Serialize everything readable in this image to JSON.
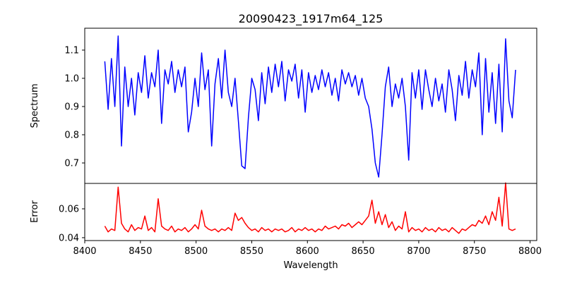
{
  "chart_data": [
    {
      "type": "line",
      "title": "20090423_1917m64_125",
      "xlabel": "",
      "ylabel": "Spectrum",
      "color": "#0000ff",
      "xlim": [
        8400,
        8806
      ],
      "ylim": [
        0.6275,
        1.1775
      ],
      "yticks": [
        0.7,
        0.8,
        0.9,
        1.0,
        1.1
      ],
      "ytick_labels": [
        "0.7",
        "0.8",
        "0.9",
        "1.0",
        "1.1"
      ],
      "x_start": 8418,
      "x_step": 3,
      "values": [
        1.06,
        0.89,
        1.07,
        0.9,
        1.15,
        0.76,
        1.04,
        0.9,
        1.0,
        0.87,
        1.02,
        0.95,
        1.08,
        0.93,
        1.02,
        0.97,
        1.1,
        0.84,
        1.03,
        0.98,
        1.06,
        0.95,
        1.03,
        0.97,
        1.04,
        0.81,
        0.88,
        1.0,
        0.9,
        1.09,
        0.96,
        1.03,
        0.76,
        0.98,
        1.07,
        0.93,
        1.1,
        0.95,
        0.9,
        1.0,
        0.85,
        0.69,
        0.68,
        0.86,
        1.0,
        0.96,
        0.85,
        1.02,
        0.91,
        1.04,
        0.95,
        1.05,
        0.97,
        1.06,
        0.92,
        1.03,
        0.99,
        1.05,
        0.93,
        1.03,
        0.88,
        1.02,
        0.95,
        1.01,
        0.96,
        1.03,
        0.97,
        1.02,
        0.94,
        1.0,
        0.92,
        1.03,
        0.98,
        1.02,
        0.97,
        1.01,
        0.94,
        1.0,
        0.93,
        0.9,
        0.82,
        0.7,
        0.65,
        0.8,
        0.97,
        1.04,
        0.9,
        0.98,
        0.93,
        1.0,
        0.9,
        0.71,
        1.02,
        0.93,
        1.03,
        0.89,
        1.03,
        0.96,
        0.9,
        1.0,
        0.92,
        0.98,
        0.88,
        1.03,
        0.96,
        0.85,
        1.01,
        0.94,
        1.06,
        0.93,
        1.03,
        0.97,
        1.09,
        0.8,
        1.07,
        0.88,
        1.02,
        0.84,
        1.05,
        0.81,
        1.14,
        0.92,
        0.86,
        1.03
      ]
    },
    {
      "type": "line",
      "title": "",
      "xlabel": "Wavelength",
      "ylabel": "Error",
      "color": "#ff0000",
      "xlim": [
        8400,
        8806
      ],
      "ylim": [
        0.038,
        0.0776
      ],
      "yticks": [
        0.04,
        0.06
      ],
      "ytick_labels": [
        "0.04",
        "0.06"
      ],
      "xticks": [
        8400,
        8450,
        8500,
        8550,
        8600,
        8650,
        8700,
        8750,
        8800
      ],
      "xtick_labels": [
        "8400",
        "8450",
        "8500",
        "8550",
        "8600",
        "8650",
        "8700",
        "8750",
        "8800"
      ],
      "x_start": 8418,
      "x_step": 3,
      "values": [
        0.048,
        0.044,
        0.046,
        0.045,
        0.075,
        0.05,
        0.046,
        0.044,
        0.049,
        0.045,
        0.047,
        0.046,
        0.055,
        0.045,
        0.047,
        0.044,
        0.067,
        0.048,
        0.046,
        0.045,
        0.048,
        0.044,
        0.046,
        0.045,
        0.047,
        0.044,
        0.046,
        0.049,
        0.046,
        0.059,
        0.048,
        0.046,
        0.045,
        0.046,
        0.044,
        0.046,
        0.045,
        0.047,
        0.045,
        0.057,
        0.052,
        0.054,
        0.05,
        0.047,
        0.045,
        0.046,
        0.044,
        0.047,
        0.045,
        0.046,
        0.044,
        0.046,
        0.045,
        0.046,
        0.044,
        0.045,
        0.047,
        0.044,
        0.046,
        0.045,
        0.047,
        0.045,
        0.046,
        0.044,
        0.046,
        0.045,
        0.048,
        0.046,
        0.047,
        0.048,
        0.046,
        0.049,
        0.048,
        0.05,
        0.047,
        0.049,
        0.051,
        0.049,
        0.052,
        0.055,
        0.066,
        0.05,
        0.058,
        0.049,
        0.056,
        0.047,
        0.051,
        0.045,
        0.048,
        0.046,
        0.058,
        0.044,
        0.047,
        0.045,
        0.046,
        0.044,
        0.047,
        0.045,
        0.046,
        0.044,
        0.047,
        0.045,
        0.046,
        0.044,
        0.047,
        0.045,
        0.043,
        0.046,
        0.045,
        0.047,
        0.049,
        0.048,
        0.052,
        0.05,
        0.055,
        0.049,
        0.058,
        0.052,
        0.068,
        0.048,
        0.078,
        0.046,
        0.045,
        0.046
      ]
    }
  ]
}
